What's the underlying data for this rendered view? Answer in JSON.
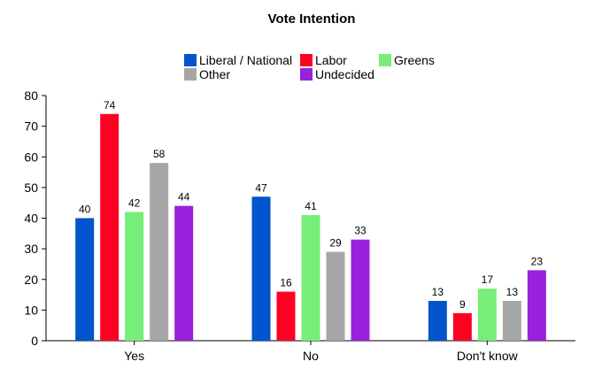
{
  "chart_data": {
    "type": "bar",
    "title": "Vote Intention",
    "xlabel": "",
    "ylabel": "",
    "categories": [
      "Yes",
      "No",
      "Don't know"
    ],
    "ylim": [
      0,
      80
    ],
    "yticks": [
      0,
      10,
      20,
      30,
      40,
      50,
      60,
      70,
      80
    ],
    "grid": false,
    "legend_position": "top",
    "series": [
      {
        "name": "Liberal / National",
        "color": "#0055cc",
        "values": [
          40,
          47,
          13
        ]
      },
      {
        "name": "Labor",
        "color": "#ff0022",
        "values": [
          74,
          16,
          9
        ]
      },
      {
        "name": "Greens",
        "color": "#77ee77",
        "values": [
          42,
          41,
          17
        ]
      },
      {
        "name": "Other",
        "color": "#a6a6a6",
        "values": [
          58,
          29,
          13
        ]
      },
      {
        "name": "Undecided",
        "color": "#9922dd",
        "values": [
          44,
          33,
          23
        ]
      }
    ]
  }
}
